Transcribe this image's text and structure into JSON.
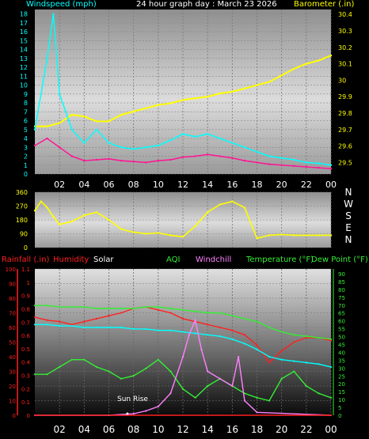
{
  "title": "24 hour graph day : March 23 2026",
  "colors": {
    "cyan": "#00ffff",
    "magenta": "#ff1493",
    "yellow": "#ffff00",
    "red": "#ff2020",
    "green": "#33ee33",
    "violet": "#ff80ff",
    "white": "#ffffff",
    "background": "#000000"
  },
  "chart_data": [
    {
      "type": "line",
      "name": "wind-barometer",
      "left_label": "Windspeed (mph)",
      "right_label": "Barometer (.in)",
      "x_ticks": [
        "02",
        "04",
        "06",
        "08",
        "10",
        "12",
        "14",
        "16",
        "18",
        "20",
        "22",
        "00"
      ],
      "y_left_ticks": [
        "0",
        "1",
        "2",
        "3",
        "4",
        "5",
        "6",
        "7",
        "8",
        "9",
        "10",
        "11",
        "12",
        "13",
        "14",
        "15",
        "16",
        "17",
        "18"
      ],
      "y_left_range": [
        0,
        18.5
      ],
      "y_right_ticks": [
        "29.5",
        "29.6",
        "29.7",
        "29.8",
        "29.9",
        "30",
        "30.1",
        "30.2",
        "30.3",
        "30.4"
      ],
      "y_right_range": [
        29.43,
        30.43
      ],
      "x_range_hours": [
        0,
        24
      ],
      "series": [
        {
          "color": "#ffff00",
          "axis": "right",
          "x": [
            0,
            1,
            2,
            3,
            4,
            5,
            6,
            7,
            8,
            9,
            10,
            11,
            12,
            13,
            14,
            15,
            16,
            17,
            18,
            19,
            20,
            21,
            22,
            23,
            24
          ],
          "y": [
            29.72,
            29.72,
            29.74,
            29.79,
            29.78,
            29.75,
            29.75,
            29.79,
            29.81,
            29.83,
            29.85,
            29.86,
            29.88,
            29.89,
            29.9,
            29.92,
            29.93,
            29.95,
            29.97,
            29.99,
            30.03,
            30.07,
            30.1,
            30.12,
            30.15
          ]
        },
        {
          "color": "#00ffff",
          "axis": "left",
          "x": [
            0,
            1,
            1.5,
            2,
            3,
            4,
            5,
            6,
            7,
            8,
            9,
            10,
            11,
            12,
            13,
            14,
            15,
            16,
            17,
            18,
            19,
            20,
            21,
            22,
            23,
            24
          ],
          "y": [
            5,
            13,
            18,
            9,
            5,
            3.5,
            5,
            3.5,
            3,
            2.8,
            3,
            3.2,
            3.8,
            4.5,
            4.2,
            4.5,
            4.0,
            3.5,
            3.0,
            2.5,
            2.0,
            1.8,
            1.6,
            1.3,
            1.2,
            1.0
          ]
        },
        {
          "color": "#ff1493",
          "axis": "left",
          "x": [
            0,
            1,
            2,
            3,
            4,
            5,
            6,
            7,
            8,
            9,
            10,
            11,
            12,
            13,
            14,
            15,
            16,
            17,
            18,
            19,
            20,
            21,
            22,
            23,
            24
          ],
          "y": [
            3.2,
            4.0,
            3.0,
            2.0,
            1.5,
            1.6,
            1.7,
            1.5,
            1.4,
            1.3,
            1.5,
            1.6,
            1.9,
            2.0,
            2.2,
            2.0,
            1.8,
            1.5,
            1.3,
            1.1,
            1.0,
            0.9,
            0.8,
            0.7,
            0.6
          ]
        }
      ]
    },
    {
      "type": "line",
      "name": "wind-direction",
      "y_left_ticks": [
        "0",
        "90",
        "180",
        "270",
        "360"
      ],
      "y_left_range": [
        0,
        360
      ],
      "direction_labels": [
        "N",
        "W",
        "S",
        "E",
        "N"
      ],
      "x_range_hours": [
        0,
        24
      ],
      "series": [
        {
          "color": "#ffff00",
          "x": [
            0,
            0.5,
            1,
            1.5,
            2,
            3,
            4,
            5,
            6,
            7,
            8,
            9,
            10,
            11,
            12,
            13,
            14,
            15,
            16,
            17,
            18,
            19,
            20,
            21,
            22,
            23,
            24
          ],
          "y": [
            240,
            300,
            260,
            200,
            150,
            170,
            210,
            230,
            180,
            120,
            100,
            90,
            95,
            80,
            70,
            140,
            230,
            280,
            300,
            260,
            60,
            80,
            85,
            80,
            80,
            80,
            80
          ]
        }
      ]
    },
    {
      "type": "line",
      "name": "rain-temperature",
      "legend": [
        "Rainfall (.in)",
        "Humidity",
        "Solar",
        "AQI",
        "Windchill",
        "Temperature (°F)",
        "Dew Point (°F)"
      ],
      "x_ticks": [
        "02",
        "04",
        "06",
        "08",
        "10",
        "12",
        "14",
        "16",
        "18",
        "20",
        "22",
        "00"
      ],
      "y_left_ticks": [
        "0",
        "10",
        "20",
        "30",
        "40",
        "50",
        "60",
        "70",
        "80",
        "90",
        "100"
      ],
      "y_left_range": [
        0,
        100
      ],
      "y_rain_ticks": [
        "0",
        "0.1",
        "0.2",
        "0.3",
        "0.4",
        "0.5",
        "0.6",
        "0.7",
        "0.8",
        "0.9",
        "1",
        "1.1"
      ],
      "y_rain_range": [
        0,
        1.1
      ],
      "y_right_ticks": [
        "0",
        "5",
        "10",
        "15",
        "20",
        "25",
        "30",
        "35",
        "40",
        "45",
        "50",
        "55",
        "60",
        "65",
        "70",
        "75",
        "80",
        "85",
        "90"
      ],
      "y_right_range": [
        0,
        93
      ],
      "annotation": "Sun Rise",
      "annotation_hour": 7.5,
      "x_range_hours": [
        0,
        24
      ],
      "series": [
        {
          "color": "#ff2020",
          "x": [
            0,
            1,
            2,
            3,
            4,
            5,
            6,
            7,
            8,
            9,
            10,
            11,
            12,
            13,
            14,
            15,
            16,
            17,
            18,
            19,
            20,
            21,
            22,
            23,
            24
          ],
          "y": [
            67,
            65,
            64,
            62,
            64,
            66,
            68,
            70,
            73,
            74,
            72,
            70,
            66,
            64,
            62,
            60,
            58,
            55,
            48,
            36,
            44,
            50,
            53,
            53,
            51
          ]
        },
        {
          "color": "#00ffff",
          "x": [
            0,
            1,
            2,
            3,
            4,
            5,
            6,
            7,
            8,
            9,
            10,
            11,
            12,
            13,
            14,
            15,
            16,
            17,
            18,
            19,
            20,
            21,
            22,
            23,
            24
          ],
          "y": [
            62,
            62,
            61,
            61,
            60,
            60,
            60,
            60,
            59,
            59,
            58,
            58,
            57,
            56,
            55,
            54,
            52,
            49,
            45,
            40,
            38,
            37,
            36,
            35,
            33
          ]
        },
        {
          "color": "#33ee33",
          "x": [
            0,
            1,
            2,
            3,
            4,
            5,
            6,
            7,
            8,
            9,
            10,
            11,
            12,
            13,
            14,
            15,
            16,
            17,
            18,
            19,
            20,
            21,
            22,
            23,
            24
          ],
          "y": [
            75,
            75,
            74,
            74,
            74,
            73,
            73,
            73,
            73,
            74,
            74,
            73,
            72,
            71,
            70,
            70,
            68,
            66,
            64,
            60,
            57,
            55,
            54,
            53,
            52
          ]
        },
        {
          "color": "#33ee33",
          "x": [
            0,
            1,
            2,
            3,
            4,
            5,
            6,
            7,
            8,
            9,
            10,
            11,
            12,
            13,
            14,
            15,
            16,
            17,
            18,
            19,
            20,
            21,
            22,
            23,
            24
          ],
          "y": [
            28,
            28,
            33,
            38,
            38,
            33,
            30,
            25,
            27,
            32,
            38,
            30,
            18,
            12,
            20,
            25,
            20,
            15,
            12,
            10,
            25,
            30,
            20,
            15,
            12
          ]
        },
        {
          "color": "#ff80ff",
          "x": [
            0,
            6,
            8,
            9,
            10,
            11,
            12,
            12.5,
            13,
            13.5,
            14,
            15,
            16,
            16.5,
            17,
            18,
            24
          ],
          "y": [
            0,
            0,
            1,
            3,
            6,
            15,
            40,
            55,
            65,
            45,
            30,
            25,
            20,
            40,
            10,
            2,
            0
          ]
        },
        {
          "color": "#ff2020",
          "x": [
            0,
            24
          ],
          "y": [
            0,
            0
          ]
        }
      ]
    }
  ]
}
